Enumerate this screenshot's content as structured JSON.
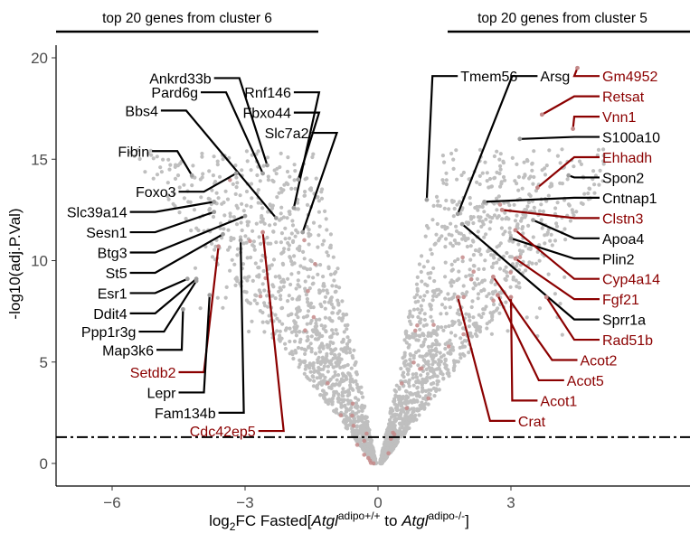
{
  "chart_data": {
    "type": "scatter",
    "title": "",
    "xlabel": {
      "prefix": "log",
      "sub": "2",
      "middle": "FC Fasted[",
      "gene1": "Atgl",
      "sup1": "adipo+/+",
      "to": " to ",
      "gene2": "Atgl",
      "sup2": "adipo-/-",
      "suffix": "]"
    },
    "ylabel": "-log10(adj.P.Val)",
    "xlim": [
      -7.4,
      5.1
    ],
    "ylim": [
      -1,
      20.5
    ],
    "xticks": [
      -6,
      -3,
      0,
      3
    ],
    "yticks": [
      0,
      5,
      10,
      15,
      20
    ],
    "threshold_y": 1.3,
    "bracket_left": "top 20 genes from cluster 6",
    "bracket_right": "top 20 genes from cluster 5",
    "colors": {
      "background_points": "#bfbfbf",
      "highlight_points": "#c48a8a",
      "label_black": "#000000",
      "label_red": "#8b0000"
    },
    "labeled_genes": [
      {
        "gene": "Ankrd33b",
        "x": -2.5,
        "y": 14.7,
        "label_x": -3.7,
        "label_y": 19.0,
        "color": "black"
      },
      {
        "gene": "Pard6g",
        "x": -2.6,
        "y": 14.3,
        "label_x": -4.0,
        "label_y": 18.3,
        "color": "black"
      },
      {
        "gene": "Bbs4",
        "x": -2.3,
        "y": 12.1,
        "label_x": -4.9,
        "label_y": 17.4,
        "color": "black"
      },
      {
        "gene": "Rnf146",
        "x": -1.9,
        "y": 12.6,
        "label_x": -1.9,
        "label_y": 18.3,
        "color": "black"
      },
      {
        "gene": "Fbxo44",
        "x": -1.8,
        "y": 14.0,
        "label_x": -1.9,
        "label_y": 17.3,
        "color": "black"
      },
      {
        "gene": "Slc7a2",
        "x": -1.7,
        "y": 11.4,
        "label_x": -1.5,
        "label_y": 16.3,
        "color": "black"
      },
      {
        "gene": "Fibin",
        "x": -4.2,
        "y": 14.2,
        "label_x": -5.1,
        "label_y": 15.4,
        "color": "black"
      },
      {
        "gene": "Foxo3",
        "x": -3.2,
        "y": 14.3,
        "label_x": -4.5,
        "label_y": 13.4,
        "color": "black"
      },
      {
        "gene": "Slc39a14",
        "x": -3.7,
        "y": 12.9,
        "label_x": -5.6,
        "label_y": 12.4,
        "color": "black"
      },
      {
        "gene": "Sesn1",
        "x": -3.7,
        "y": 12.4,
        "label_x": -5.6,
        "label_y": 11.4,
        "color": "black"
      },
      {
        "gene": "Btg3",
        "x": -3.0,
        "y": 12.2,
        "label_x": -5.6,
        "label_y": 10.4,
        "color": "black"
      },
      {
        "gene": "St5",
        "x": -3.5,
        "y": 11.3,
        "label_x": -5.6,
        "label_y": 9.4,
        "color": "black"
      },
      {
        "gene": "Esr1",
        "x": -4.3,
        "y": 9.1,
        "label_x": -5.6,
        "label_y": 8.4,
        "color": "black"
      },
      {
        "gene": "Ddit4",
        "x": -4.1,
        "y": 9.1,
        "label_x": -5.6,
        "label_y": 7.4,
        "color": "black"
      },
      {
        "gene": "Ppp1r3g",
        "x": -4.1,
        "y": 9.0,
        "label_x": -5.4,
        "label_y": 6.5,
        "color": "black"
      },
      {
        "gene": "Map3k6",
        "x": -4.4,
        "y": 7.6,
        "label_x": -5.0,
        "label_y": 5.6,
        "color": "black"
      },
      {
        "gene": "Setdb2",
        "x": -3.6,
        "y": 10.7,
        "label_x": -4.5,
        "label_y": 4.5,
        "color": "red"
      },
      {
        "gene": "Lepr",
        "x": -3.8,
        "y": 8.3,
        "label_x": -4.5,
        "label_y": 3.5,
        "color": "black"
      },
      {
        "gene": "Fam134b",
        "x": -3.1,
        "y": 11.0,
        "label_x": -3.6,
        "label_y": 2.5,
        "color": "black"
      },
      {
        "gene": "Cdc42ep5",
        "x": -2.6,
        "y": 11.4,
        "label_x": -2.7,
        "label_y": 1.6,
        "color": "red"
      },
      {
        "gene": "Tmem56",
        "x": 1.1,
        "y": 13.0,
        "label_x": 1.8,
        "label_y": 19.1,
        "color": "black"
      },
      {
        "gene": "Arsg",
        "x": 1.8,
        "y": 12.3,
        "label_x": 3.6,
        "label_y": 19.1,
        "color": "black"
      },
      {
        "gene": "Gm4952",
        "x": 4.5,
        "y": 19.5,
        "label_x": 5.0,
        "label_y": 19.1,
        "color": "red"
      },
      {
        "gene": "Retsat",
        "x": 3.7,
        "y": 17.2,
        "label_x": 5.0,
        "label_y": 18.1,
        "color": "red"
      },
      {
        "gene": "Vnn1",
        "x": 4.4,
        "y": 16.5,
        "label_x": 5.0,
        "label_y": 17.1,
        "color": "red"
      },
      {
        "gene": "S100a10",
        "x": 3.2,
        "y": 16.0,
        "label_x": 5.0,
        "label_y": 16.1,
        "color": "black"
      },
      {
        "gene": "Ehhadh",
        "x": 3.6,
        "y": 13.6,
        "label_x": 5.0,
        "label_y": 15.1,
        "color": "red"
      },
      {
        "gene": "Spon2",
        "x": 4.3,
        "y": 14.2,
        "label_x": 5.0,
        "label_y": 14.1,
        "color": "black"
      },
      {
        "gene": "Cntnap1",
        "x": 2.4,
        "y": 12.9,
        "label_x": 5.0,
        "label_y": 13.1,
        "color": "black"
      },
      {
        "gene": "Clstn3",
        "x": 2.8,
        "y": 12.5,
        "label_x": 5.0,
        "label_y": 12.1,
        "color": "red"
      },
      {
        "gene": "Apoa4",
        "x": 3.5,
        "y": 12.0,
        "label_x": 5.0,
        "label_y": 11.1,
        "color": "black"
      },
      {
        "gene": "Plin2",
        "x": 3.0,
        "y": 11.1,
        "label_x": 5.0,
        "label_y": 10.1,
        "color": "black"
      },
      {
        "gene": "Cyp4a14",
        "x": 3.1,
        "y": 11.5,
        "label_x": 5.0,
        "label_y": 9.1,
        "color": "red"
      },
      {
        "gene": "Fgf21",
        "x": 3.1,
        "y": 10.1,
        "label_x": 5.0,
        "label_y": 8.1,
        "color": "red"
      },
      {
        "gene": "Sprr1a",
        "x": 1.9,
        "y": 11.8,
        "label_x": 5.0,
        "label_y": 7.1,
        "color": "black"
      },
      {
        "gene": "Rad51b",
        "x": 3.8,
        "y": 8.2,
        "label_x": 5.0,
        "label_y": 6.1,
        "color": "red"
      },
      {
        "gene": "Acot2",
        "x": 2.6,
        "y": 9.2,
        "label_x": 4.5,
        "label_y": 5.1,
        "color": "red"
      },
      {
        "gene": "Acot5",
        "x": 2.7,
        "y": 8.3,
        "label_x": 4.2,
        "label_y": 4.1,
        "color": "red"
      },
      {
        "gene": "Acot1",
        "x": 3.0,
        "y": 8.2,
        "label_x": 3.6,
        "label_y": 3.1,
        "color": "red"
      },
      {
        "gene": "Crat",
        "x": 1.8,
        "y": 8.2,
        "label_x": 3.1,
        "label_y": 2.1,
        "color": "red"
      }
    ]
  }
}
